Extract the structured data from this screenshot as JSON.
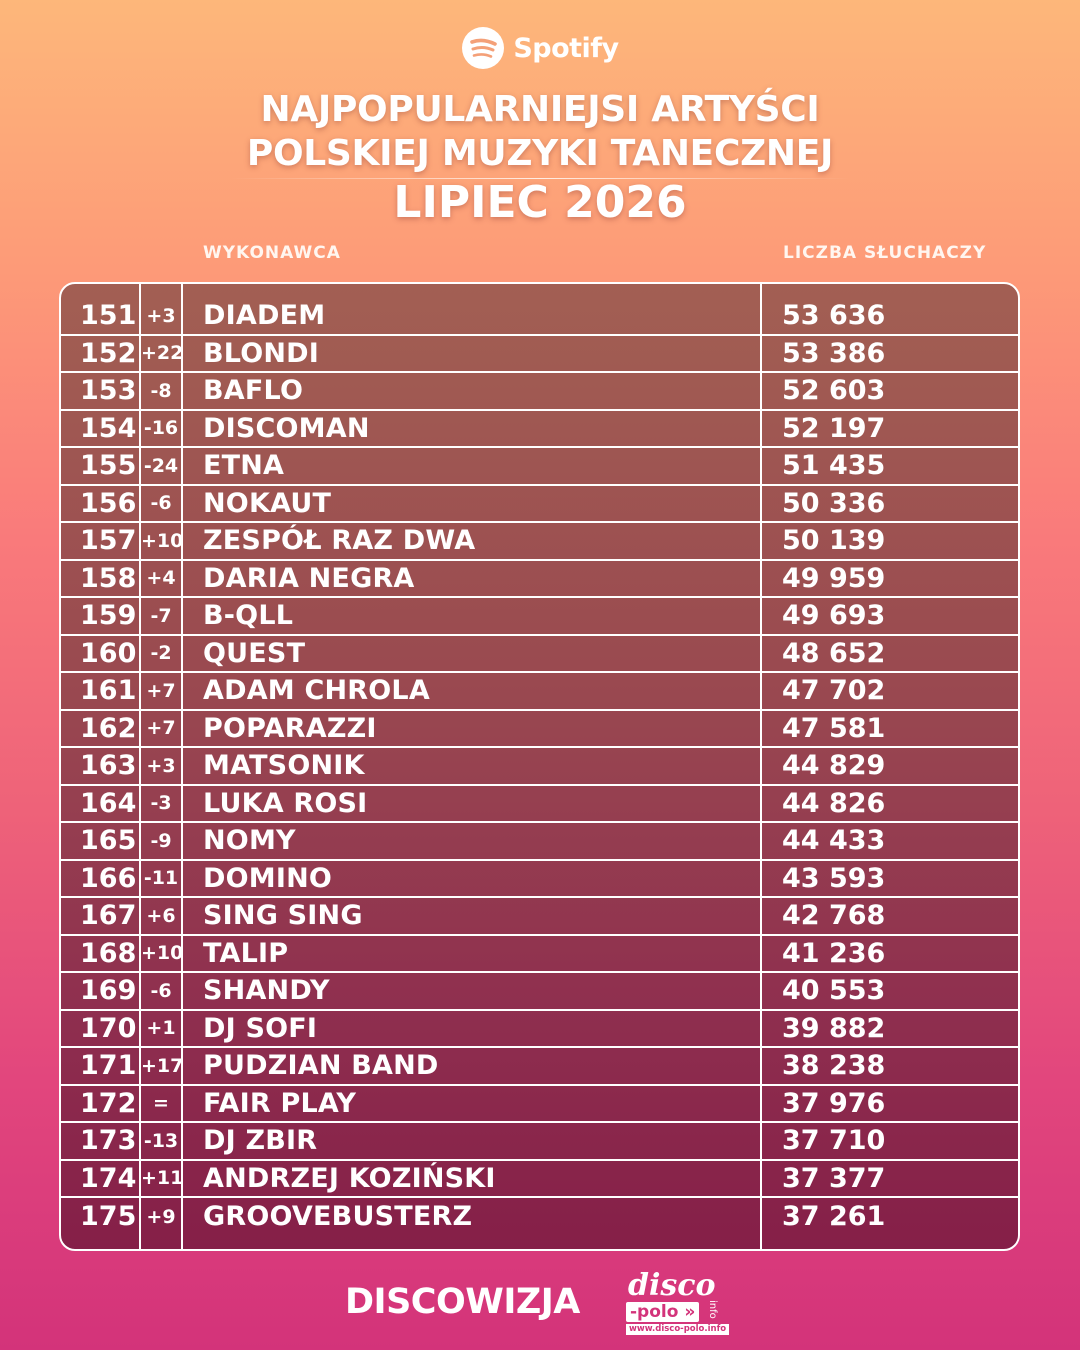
{
  "header": {
    "brand": "Spotify",
    "icon": "spotify-icon",
    "title_line1": "NAJPOPULARNIEJSI ARTYŚCI",
    "title_line2": "POLSKIEJ MUZYKI TANECZNEJ",
    "period": "LIPIEC 2026"
  },
  "columns": {
    "artist": "WYKONAWCA",
    "listeners": "LICZBA SŁUCHACZY"
  },
  "rows": [
    {
      "rank": "151",
      "change": "+3",
      "artist": "DIADEM",
      "listeners": "53 636"
    },
    {
      "rank": "152",
      "change": "+22",
      "artist": "BLONDI",
      "listeners": "53 386"
    },
    {
      "rank": "153",
      "change": "-8",
      "artist": "BAFLO",
      "listeners": "52 603"
    },
    {
      "rank": "154",
      "change": "-16",
      "artist": "DISCOMAN",
      "listeners": "52 197"
    },
    {
      "rank": "155",
      "change": "-24",
      "artist": "ETNA",
      "listeners": "51 435"
    },
    {
      "rank": "156",
      "change": "-6",
      "artist": "NOKAUT",
      "listeners": "50 336"
    },
    {
      "rank": "157",
      "change": "+10",
      "artist": "ZESPÓŁ RAZ DWA",
      "listeners": "50 139"
    },
    {
      "rank": "158",
      "change": "+4",
      "artist": "DARIA NEGRA",
      "listeners": "49 959"
    },
    {
      "rank": "159",
      "change": "-7",
      "artist": "B-QLL",
      "listeners": "49 693"
    },
    {
      "rank": "160",
      "change": "-2",
      "artist": "QUEST",
      "listeners": "48 652"
    },
    {
      "rank": "161",
      "change": "+7",
      "artist": "ADAM CHROLA",
      "listeners": "47 702"
    },
    {
      "rank": "162",
      "change": "+7",
      "artist": "POPARAZZI",
      "listeners": "47 581"
    },
    {
      "rank": "163",
      "change": "+3",
      "artist": "MATSONIK",
      "listeners": "44 829"
    },
    {
      "rank": "164",
      "change": "-3",
      "artist": "LUKA ROSI",
      "listeners": "44 826"
    },
    {
      "rank": "165",
      "change": "-9",
      "artist": "NOMY",
      "listeners": "44 433"
    },
    {
      "rank": "166",
      "change": "-11",
      "artist": "DOMINO",
      "listeners": "43 593"
    },
    {
      "rank": "167",
      "change": "+6",
      "artist": "SING SING",
      "listeners": "42 768"
    },
    {
      "rank": "168",
      "change": "+10",
      "artist": "TALIP",
      "listeners": "41 236"
    },
    {
      "rank": "169",
      "change": "-6",
      "artist": "SHANDY",
      "listeners": "40 553"
    },
    {
      "rank": "170",
      "change": "+1",
      "artist": "DJ SOFI",
      "listeners": "39 882"
    },
    {
      "rank": "171",
      "change": "+17",
      "artist": "PUDZIAN BAND",
      "listeners": "38 238"
    },
    {
      "rank": "172",
      "change": "=",
      "artist": "FAIR PLAY",
      "listeners": "37 976"
    },
    {
      "rank": "173",
      "change": "-13",
      "artist": "DJ ZBIR",
      "listeners": "37 710"
    },
    {
      "rank": "174",
      "change": "+11",
      "artist": "ANDRZEJ KOZIŃSKI",
      "listeners": "37 377"
    },
    {
      "rank": "175",
      "change": "+9",
      "artist": "GROOVEBUSTERZ",
      "listeners": "37 261"
    }
  ],
  "footer": {
    "brand": "DISCOWIZJA",
    "logo_disco": "disco",
    "logo_polo": "-polo »",
    "logo_info": "info",
    "logo_url": "www.disco-polo.info"
  },
  "colors": {
    "bg_top": "#fdb77a",
    "bg_bottom": "#d3337a",
    "table_top": "#a25f53",
    "table_bottom": "#851f48"
  }
}
